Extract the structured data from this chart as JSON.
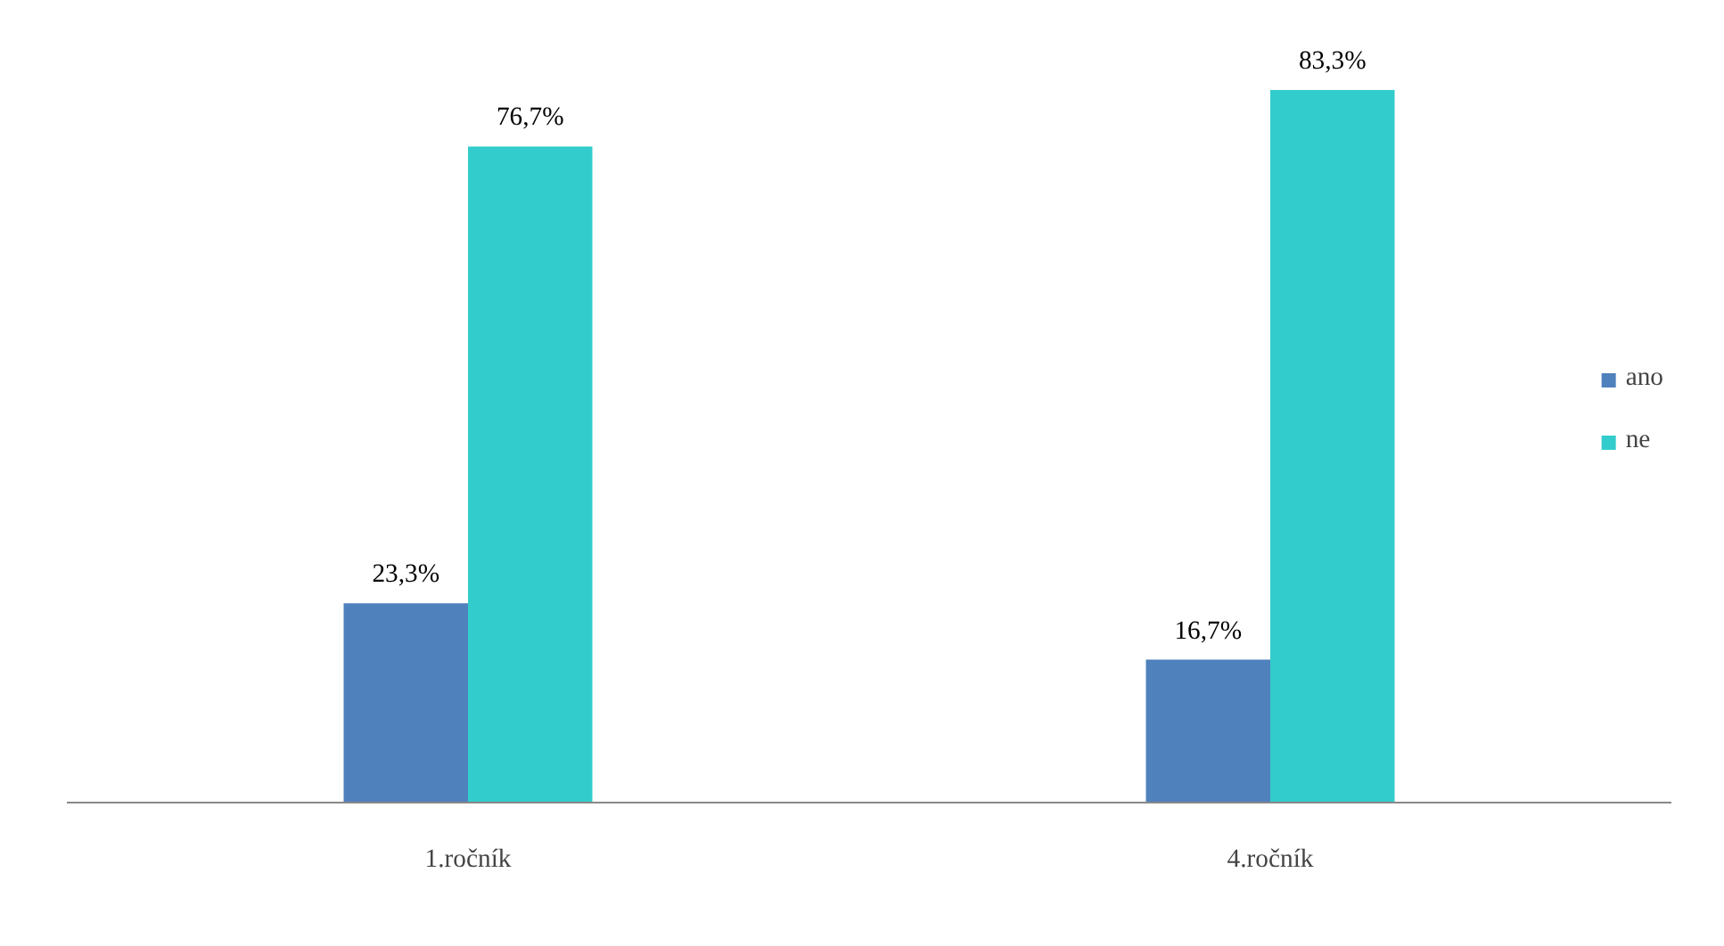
{
  "chart_data": {
    "type": "bar",
    "categories": [
      "1.ročník",
      "4.ročník"
    ],
    "series": [
      {
        "name": "ano",
        "color": "#4f81bd",
        "values": [
          23.3,
          16.7
        ],
        "value_labels": [
          "23,3%",
          "16,7%"
        ]
      },
      {
        "name": "ne",
        "color": "#33cccc",
        "values": [
          76.7,
          83.3
        ],
        "value_labels": [
          "76,7%",
          "83,3%"
        ]
      }
    ],
    "grid": false,
    "legend": "right"
  }
}
